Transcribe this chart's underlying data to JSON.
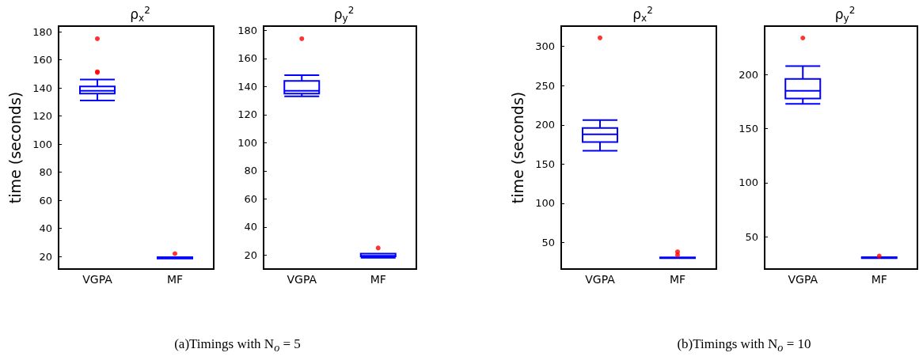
{
  "chart_data": [
    {
      "type": "box",
      "title": "ρ$_{x}$$^{2}$",
      "ylabel": "time (seconds)",
      "categories": [
        "VGPA",
        "MF"
      ],
      "ylim": [
        11,
        184
      ],
      "yticks": [
        20,
        40,
        60,
        80,
        100,
        120,
        140,
        160,
        180
      ],
      "annotations": [
        "(a)Timings with N$_{o}$ = 5"
      ],
      "series": [
        {
          "color": "#0000ff",
          "boxes": [
            {
              "low": 131,
              "q1": 136,
              "median": 138,
              "q3": 141,
              "high": 146,
              "outliers": [
                175,
                151.5,
                151
              ]
            },
            {
              "low": 18.5,
              "q1": 18.5,
              "median": 19,
              "q3": 19.5,
              "high": 19.5,
              "outliers": [
                22
              ]
            }
          ]
        }
      ]
    },
    {
      "type": "box",
      "title": "ρ$_{y}$$^{2}$",
      "categories": [
        "VGPA",
        "MF"
      ],
      "ylim": [
        10,
        183
      ],
      "yticks": [
        20,
        40,
        60,
        80,
        100,
        120,
        140,
        160,
        180
      ],
      "series": [
        {
          "color": "#0000ff",
          "boxes": [
            {
              "low": 133,
              "q1": 135,
              "median": 137,
              "q3": 144,
              "high": 148,
              "outliers": [
                174
              ]
            },
            {
              "low": 18,
              "q1": 19,
              "median": 19.5,
              "q3": 21,
              "high": 21,
              "outliers": [
                25
              ]
            }
          ]
        }
      ]
    },
    {
      "type": "box",
      "title": "ρ$_{x}$$^{2}$",
      "ylabel": "time (seconds)",
      "categories": [
        "VGPA",
        "MF"
      ],
      "ylim": [
        16,
        326
      ],
      "yticks": [
        50,
        100,
        150,
        200,
        250,
        300
      ],
      "annotations": [
        "(b)Timings with N$_{o}$ = 10"
      ],
      "series": [
        {
          "color": "#0000ff",
          "boxes": [
            {
              "low": 167,
              "q1": 178,
              "median": 188,
              "q3": 196,
              "high": 206,
              "outliers": [
                311
              ]
            },
            {
              "low": 30,
              "q1": 30,
              "median": 30.5,
              "q3": 31,
              "high": 31,
              "outliers": [
                38,
                34
              ]
            }
          ]
        }
      ]
    },
    {
      "type": "box",
      "title": "ρ$_{y}$$^{2}$",
      "categories": [
        "VGPA",
        "MF"
      ],
      "ylim": [
        20,
        245
      ],
      "yticks": [
        50,
        100,
        150,
        200
      ],
      "series": [
        {
          "color": "#0000ff",
          "boxes": [
            {
              "low": 173,
              "q1": 178,
              "median": 185,
              "q3": 196,
              "high": 208,
              "outliers": [
                234
              ]
            },
            {
              "low": 30,
              "q1": 30,
              "median": 30.5,
              "q3": 31,
              "high": 31,
              "outliers": [
                32
              ]
            }
          ]
        }
      ]
    }
  ]
}
